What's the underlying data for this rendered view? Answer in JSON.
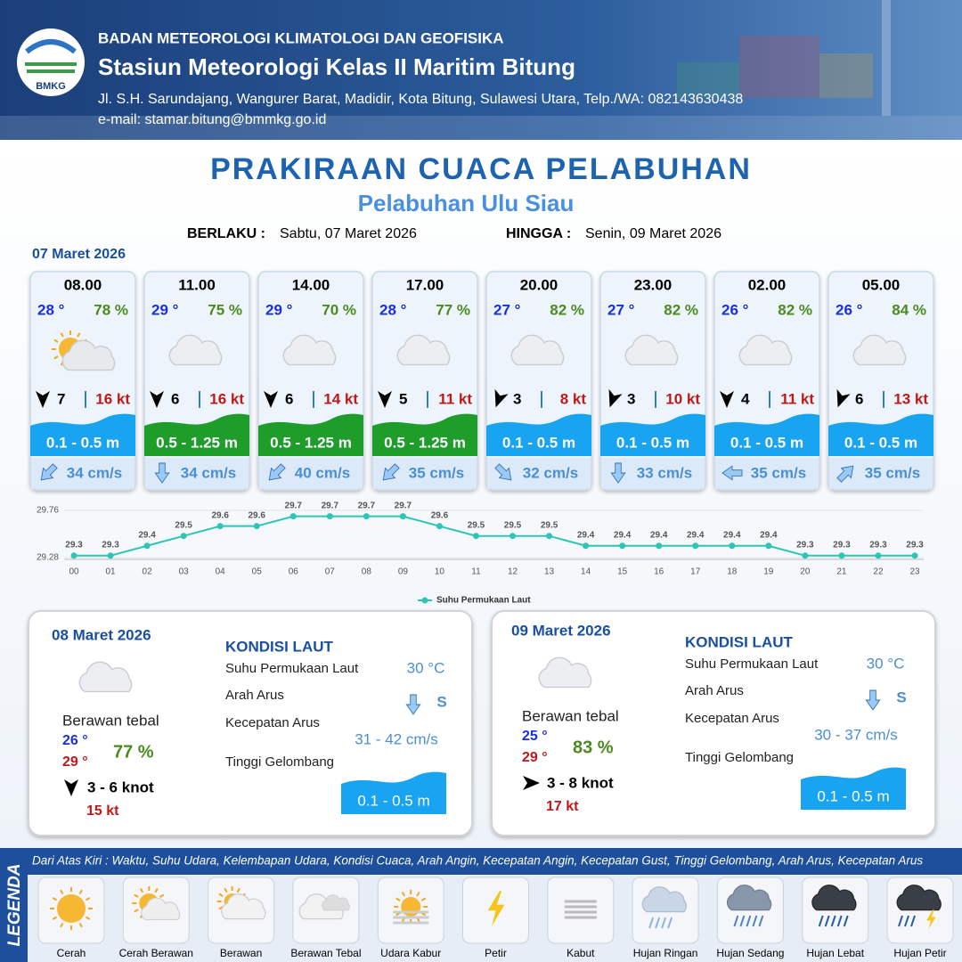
{
  "header": {
    "logo": "BMKG",
    "organization": "BADAN METEOROLOGI KLIMATOLOGI DAN GEOFISIKA",
    "station": "Stasiun Meteorologi Kelas II Maritim Bitung",
    "address": "Jl. S.H. Sarundajang, Wangurer Barat, Madidir, Kota Bitung, Sulawesi Utara, Telp./WA: 082143630438",
    "email": "e-mail: stamar.bitung@bmmkg.go.id"
  },
  "title": "PRAKIRAAN CUACA PELABUHAN",
  "subtitle": "Pelabuhan Ulu Siau",
  "validity": {
    "from_label": "BERLAKU :",
    "from": "Sabtu, 07 Maret 2026",
    "to_label": "HINGGA :",
    "to": "Senin, 09 Maret 2026"
  },
  "day1_date": "07 Maret 2026",
  "forecasts": [
    {
      "time": "08.00",
      "temp": "28 °",
      "humidity": "78 %",
      "wind": "7",
      "gust": "16 kt",
      "wave": "0.1 - 0.5 m",
      "current": "34 cm/s"
    },
    {
      "time": "11.00",
      "temp": "29 °",
      "humidity": "75 %",
      "wind": "6",
      "gust": "16 kt",
      "wave": "0.5 - 1.25 m",
      "current": "34 cm/s"
    },
    {
      "time": "14.00",
      "temp": "29 °",
      "humidity": "70 %",
      "wind": "6",
      "gust": "14 kt",
      "wave": "0.5 - 1.25 m",
      "current": "40 cm/s"
    },
    {
      "time": "17.00",
      "temp": "28 °",
      "humidity": "77 %",
      "wind": "5",
      "gust": "11 kt",
      "wave": "0.5 - 1.25 m",
      "current": "35 cm/s"
    },
    {
      "time": "20.00",
      "temp": "27 °",
      "humidity": "82 %",
      "wind": "3",
      "gust": "8 kt",
      "wave": "0.1 - 0.5 m",
      "current": "32 cm/s"
    },
    {
      "time": "23.00",
      "temp": "27 °",
      "humidity": "82 %",
      "wind": "3",
      "gust": "10 kt",
      "wave": "0.1 - 0.5 m",
      "current": "33 cm/s"
    },
    {
      "time": "02.00",
      "temp": "26 °",
      "humidity": "82 %",
      "wind": "4",
      "gust": "11 kt",
      "wave": "0.1 - 0.5 m",
      "current": "35 cm/s"
    },
    {
      "time": "05.00",
      "temp": "26 °",
      "humidity": "84 %",
      "wind": "6",
      "gust": "13 kt",
      "wave": "0.1 - 0.5 m",
      "current": "35 cm/s"
    }
  ],
  "chart_data": {
    "type": "line",
    "categories": [
      "00",
      "01",
      "02",
      "03",
      "04",
      "05",
      "06",
      "07",
      "08",
      "09",
      "10",
      "11",
      "12",
      "13",
      "14",
      "15",
      "16",
      "17",
      "18",
      "19",
      "20",
      "21",
      "22",
      "23"
    ],
    "series": [
      {
        "name": "Suhu Permukaan Laut",
        "color": "#2ec4b6",
        "values": [
          29.3,
          29.3,
          29.4,
          29.5,
          29.6,
          29.6,
          29.7,
          29.7,
          29.7,
          29.7,
          29.6,
          29.5,
          29.5,
          29.5,
          29.4,
          29.4,
          29.4,
          29.4,
          29.4,
          29.4,
          29.3,
          29.3,
          29.3,
          29.3
        ]
      }
    ],
    "ylim": [
      29.28,
      29.76
    ],
    "yticks": [
      29.28,
      29.76
    ],
    "grid": true
  },
  "days": [
    {
      "date": "08 Maret 2026",
      "condition": "Berawan tebal",
      "temp_min": "26 °",
      "temp_max": "29 °",
      "humidity": "77 %",
      "wind": "3  - 6 knot",
      "gust": "15 kt",
      "sea_title": "KONDISI LAUT",
      "sst_label": "Suhu Permukaan Laut",
      "sst": "30 °C",
      "dir_label": "Arah Arus",
      "dir": "S",
      "speed_label": "Kecepatan Arus",
      "speed": "31 - 42 cm/s",
      "wave_label": "Tinggi Gelombang",
      "wave": "0.1 - 0.5 m"
    },
    {
      "date": "09 Maret 2026",
      "condition": "Berawan tebal",
      "temp_min": "25 °",
      "temp_max": "29 °",
      "humidity": "83 %",
      "wind": "3 - 8 knot",
      "gust": "17 kt",
      "sea_title": "KONDISI LAUT",
      "sst_label": "Suhu Permukaan Laut",
      "sst": "30 °C",
      "dir_label": "Arah Arus",
      "dir": "S",
      "speed_label": "Kecepatan Arus",
      "speed": "30 - 37 cm/s",
      "wave_label": "Tinggi Gelombang",
      "wave": "0.1 - 0.5 m"
    }
  ],
  "legend": {
    "title": "LEGENDA",
    "description": "Dari Atas Kiri : Waktu, Suhu Udara, Kelembapan Udara, Kondisi Cuaca, Arah Angin, Kecepatan Angin, Kecepatan Gust, Tinggi Gelombang, Arah Arus, Kecepatan Arus",
    "items": [
      "Cerah",
      "Cerah Berawan",
      "Berawan",
      "Berawan Tebal",
      "Udara Kabur",
      "Petir",
      "Kabut",
      "Hujan Ringan",
      "Hujan Sedang",
      "Hujan Lebat",
      "Hujan Petir"
    ]
  }
}
